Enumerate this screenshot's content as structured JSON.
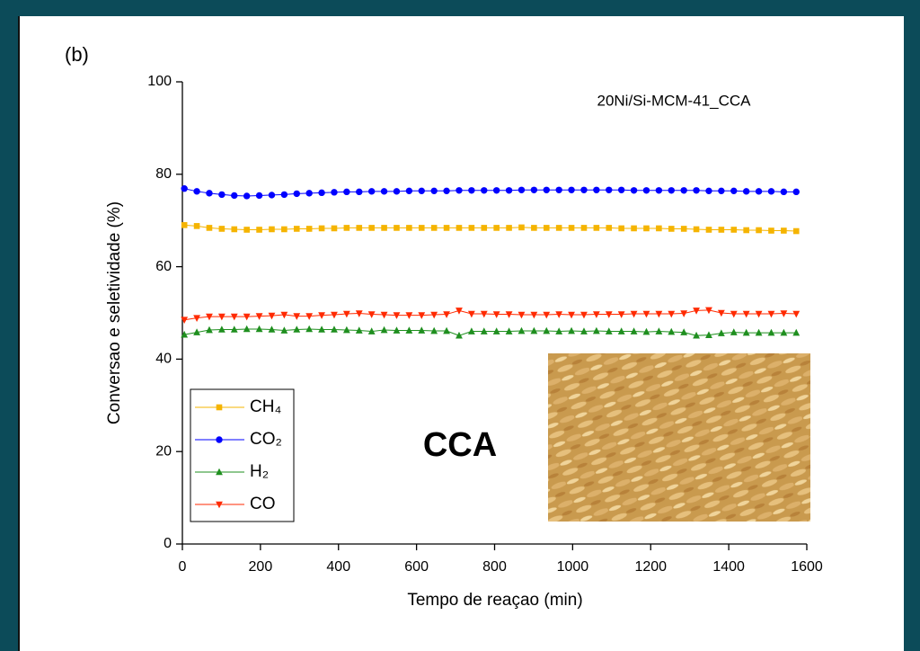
{
  "chart_data": {
    "type": "line",
    "panel_label": "(b)",
    "annotation": "20Ni/Si-MCM-41_CCA",
    "inset_label": "CCA",
    "xlabel": "Tempo de reaçao (min)",
    "ylabel": "Conversao e seletividade (%)",
    "xlim": [
      0,
      1600
    ],
    "xticks": [
      0,
      200,
      400,
      600,
      800,
      1000,
      1200,
      1400,
      1600
    ],
    "ylim": [
      0,
      100
    ],
    "yticks": [
      0,
      20,
      40,
      60,
      80,
      100
    ],
    "legend": "lower left",
    "x": [
      5,
      37,
      69,
      101,
      133,
      165,
      197,
      229,
      261,
      293,
      325,
      357,
      389,
      421,
      453,
      485,
      517,
      549,
      581,
      613,
      645,
      677,
      709,
      741,
      773,
      805,
      837,
      869,
      901,
      933,
      965,
      997,
      1029,
      1061,
      1093,
      1125,
      1157,
      1189,
      1221,
      1253,
      1285,
      1317,
      1349,
      1381,
      1413,
      1445,
      1477,
      1509,
      1541,
      1573
    ],
    "series": [
      {
        "name": "CH₄",
        "color": "#f5b400",
        "marker": "square",
        "values": [
          69.0,
          68.8,
          68.4,
          68.2,
          68.1,
          68.0,
          68.0,
          68.1,
          68.1,
          68.2,
          68.2,
          68.3,
          68.3,
          68.4,
          68.4,
          68.4,
          68.4,
          68.4,
          68.4,
          68.4,
          68.4,
          68.4,
          68.4,
          68.4,
          68.4,
          68.4,
          68.4,
          68.5,
          68.4,
          68.4,
          68.4,
          68.4,
          68.4,
          68.4,
          68.4,
          68.3,
          68.3,
          68.3,
          68.3,
          68.2,
          68.2,
          68.1,
          68.0,
          68.0,
          68.0,
          67.9,
          67.9,
          67.8,
          67.8,
          67.7
        ]
      },
      {
        "name": "CO₂",
        "color": "#0000ff",
        "marker": "circle",
        "values": [
          76.9,
          76.3,
          75.9,
          75.6,
          75.4,
          75.3,
          75.4,
          75.5,
          75.6,
          75.8,
          75.9,
          76.0,
          76.1,
          76.2,
          76.2,
          76.3,
          76.3,
          76.3,
          76.4,
          76.4,
          76.4,
          76.4,
          76.5,
          76.5,
          76.5,
          76.5,
          76.5,
          76.6,
          76.6,
          76.6,
          76.6,
          76.6,
          76.6,
          76.6,
          76.6,
          76.6,
          76.5,
          76.5,
          76.5,
          76.5,
          76.5,
          76.5,
          76.4,
          76.4,
          76.4,
          76.3,
          76.3,
          76.3,
          76.2,
          76.2
        ]
      },
      {
        "name": "H₂",
        "color": "#1f8f1f",
        "marker": "triangle-up",
        "values": [
          45.3,
          45.8,
          46.3,
          46.4,
          46.4,
          46.5,
          46.5,
          46.4,
          46.2,
          46.4,
          46.5,
          46.4,
          46.4,
          46.3,
          46.2,
          46.0,
          46.3,
          46.2,
          46.2,
          46.2,
          46.1,
          46.1,
          45.1,
          46.0,
          46.0,
          46.0,
          46.0,
          46.1,
          46.1,
          46.1,
          46.0,
          46.1,
          46.0,
          46.1,
          46.0,
          46.0,
          46.0,
          45.9,
          46.0,
          45.9,
          45.8,
          45.1,
          45.2,
          45.6,
          45.8,
          45.7,
          45.7,
          45.7,
          45.7,
          45.7
        ]
      },
      {
        "name": "CO",
        "color": "#ff2a00",
        "marker": "triangle-down",
        "values": [
          48.5,
          48.9,
          49.2,
          49.2,
          49.2,
          49.2,
          49.3,
          49.4,
          49.6,
          49.3,
          49.3,
          49.5,
          49.6,
          49.8,
          49.9,
          49.7,
          49.6,
          49.5,
          49.5,
          49.5,
          49.6,
          49.7,
          50.5,
          49.8,
          49.8,
          49.7,
          49.7,
          49.6,
          49.6,
          49.6,
          49.7,
          49.6,
          49.6,
          49.7,
          49.7,
          49.7,
          49.8,
          49.8,
          49.8,
          49.8,
          49.9,
          50.5,
          50.6,
          50.0,
          49.8,
          49.8,
          49.8,
          49.8,
          49.9,
          49.8
        ]
      }
    ]
  }
}
